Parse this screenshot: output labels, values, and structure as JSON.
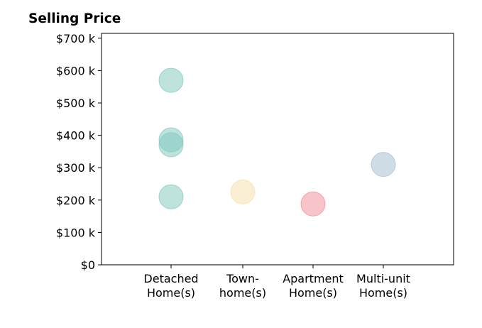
{
  "chart_data": {
    "type": "scatter",
    "title": "Selling Price",
    "xlabel": "",
    "ylabel": "",
    "categories": [
      [
        "Detached",
        "Home(s)"
      ],
      [
        "Town-",
        "home(s)"
      ],
      [
        "Apartment",
        "Home(s)"
      ],
      [
        "Multi-unit",
        "Home(s)"
      ]
    ],
    "y_ticks": [
      0,
      100,
      200,
      300,
      400,
      500,
      600,
      700
    ],
    "y_tick_labels": [
      "$0",
      "$100 k",
      "$200 k",
      "$300 k",
      "$400 k",
      "$500 k",
      "$600 k",
      "$700 k"
    ],
    "ylim": [
      0,
      715
    ],
    "y_unit": "thousand dollars",
    "grid": false,
    "legend": "none",
    "points": [
      {
        "category": 0,
        "y": 570,
        "color": "#7ec8bc"
      },
      {
        "category": 0,
        "y": 386,
        "color": "#7ec8bc"
      },
      {
        "category": 0,
        "y": 371,
        "color": "#7ec8bc"
      },
      {
        "category": 0,
        "y": 210,
        "color": "#7ec8bc"
      },
      {
        "category": 1,
        "y": 225,
        "color": "#f5dfa5"
      },
      {
        "category": 2,
        "y": 188,
        "color": "#ef8a93"
      },
      {
        "category": 3,
        "y": 310,
        "color": "#9fbbcf"
      }
    ]
  }
}
